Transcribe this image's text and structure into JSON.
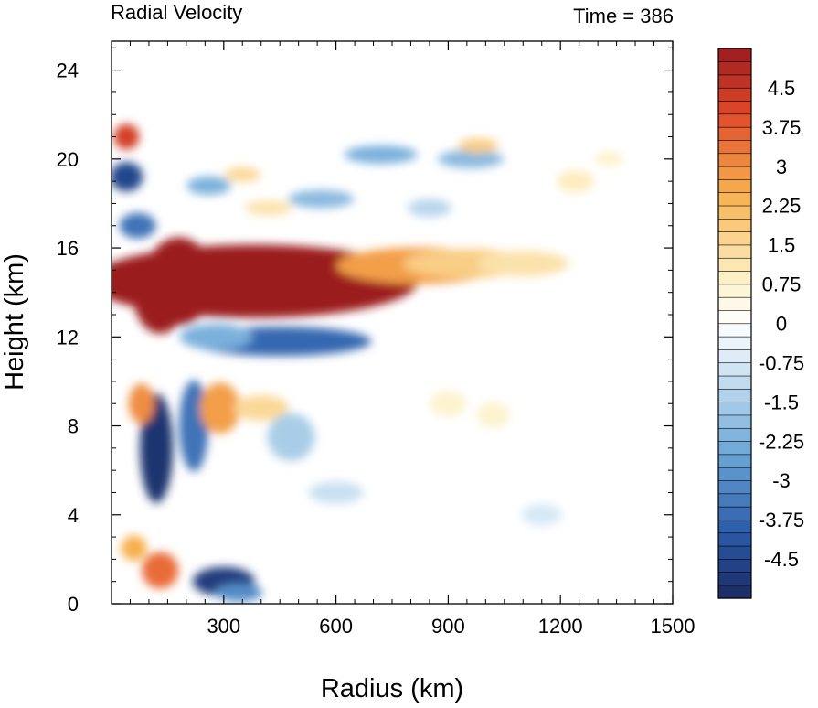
{
  "chart_data": {
    "type": "heatmap",
    "title": "Radial Velocity",
    "subtitle": "Time = 386",
    "xlabel": "Radius (km)",
    "ylabel": "Height (km)",
    "xlim": [
      0,
      1500
    ],
    "ylim": [
      0,
      25.3
    ],
    "x_ticks": [
      300,
      600,
      900,
      1200,
      1500
    ],
    "y_ticks": [
      0,
      4,
      8,
      12,
      16,
      20,
      24
    ],
    "x_tick_labels": [
      "300",
      "600",
      "900",
      "1200",
      "1500"
    ],
    "y_tick_labels": [
      "0",
      "4",
      "8",
      "12",
      "16",
      "20",
      "24"
    ],
    "colorbar": {
      "levels": [
        -5.25,
        -5,
        -4.75,
        -4.5,
        -4.25,
        -4,
        -3.75,
        -3.5,
        -3.25,
        -3,
        -2.75,
        -2.5,
        -2.25,
        -2,
        -1.75,
        -1.5,
        -1.25,
        -1,
        -0.75,
        -0.5,
        -0.25,
        0,
        0.25,
        0.5,
        0.75,
        1,
        1.25,
        1.5,
        1.75,
        2,
        2.25,
        2.5,
        2.75,
        3,
        3.25,
        3.5,
        3.75,
        4,
        4.25,
        4.5,
        4.75,
        5,
        5.25
      ],
      "labeled_levels": [
        "4.5",
        "3.75",
        "3",
        "2.25",
        "1.5",
        "0.75",
        "0",
        "-0.75",
        "-1.5",
        "-2.25",
        "-3",
        "-3.75",
        "-4.5"
      ],
      "colormap": "diverging blue-white-red",
      "colors": {
        "neg_extreme": "#1c2a62",
        "neg_strong": "#2a5aa8",
        "neg_mid": "#6aa6d6",
        "neg_weak": "#cfe4f3",
        "zero": "#ffffff",
        "pos_weak": "#fdf0c4",
        "pos_mid": "#f6b04e",
        "pos_strong": "#e14a2b",
        "pos_extreme": "#9b1b1e"
      }
    },
    "features": [
      {
        "x": 380,
        "y": 14.5,
        "value": 5.25
      },
      {
        "x": 130,
        "y": 14.0,
        "value": 5.25
      },
      {
        "x": 180,
        "y": 14.5,
        "value": 5.25
      },
      {
        "x": 820,
        "y": 15.2,
        "value": 2.75
      },
      {
        "x": 950,
        "y": 15.3,
        "value": 1.75
      },
      {
        "x": 1100,
        "y": 15.3,
        "value": 1.25
      },
      {
        "x": 450,
        "y": 11.8,
        "value": -3.75
      },
      {
        "x": 280,
        "y": 12.0,
        "value": -2.25
      },
      {
        "x": 70,
        "y": 17.0,
        "value": -3.5
      },
      {
        "x": 40,
        "y": 19.2,
        "value": -4.5
      },
      {
        "x": 40,
        "y": 21.0,
        "value": 4.25
      },
      {
        "x": 120,
        "y": 7.0,
        "value": -5.0
      },
      {
        "x": 80,
        "y": 9.0,
        "value": 3.0
      },
      {
        "x": 220,
        "y": 8.0,
        "value": -3.5
      },
      {
        "x": 290,
        "y": 8.8,
        "value": 2.75
      },
      {
        "x": 400,
        "y": 8.8,
        "value": 1.5
      },
      {
        "x": 480,
        "y": 7.5,
        "value": -1.5
      },
      {
        "x": 300,
        "y": 1.0,
        "value": -4.75
      },
      {
        "x": 340,
        "y": 0.5,
        "value": -3.0
      },
      {
        "x": 130,
        "y": 1.5,
        "value": 3.5
      },
      {
        "x": 60,
        "y": 2.5,
        "value": 2.5
      },
      {
        "x": 560,
        "y": 18.2,
        "value": -2.0
      },
      {
        "x": 720,
        "y": 20.2,
        "value": -2.25
      },
      {
        "x": 960,
        "y": 20.0,
        "value": -2.0
      },
      {
        "x": 980,
        "y": 20.6,
        "value": 1.75
      },
      {
        "x": 1240,
        "y": 19.0,
        "value": 1.0
      },
      {
        "x": 1330,
        "y": 20.0,
        "value": 0.75
      },
      {
        "x": 260,
        "y": 18.8,
        "value": -2.25
      },
      {
        "x": 350,
        "y": 19.3,
        "value": 1.5
      },
      {
        "x": 420,
        "y": 17.8,
        "value": 1.25
      },
      {
        "x": 850,
        "y": 17.8,
        "value": -1.25
      },
      {
        "x": 600,
        "y": 5.0,
        "value": -1.0
      },
      {
        "x": 900,
        "y": 9.0,
        "value": 0.75
      },
      {
        "x": 1020,
        "y": 8.5,
        "value": 0.75
      },
      {
        "x": 1150,
        "y": 4.0,
        "value": -0.75
      }
    ]
  }
}
